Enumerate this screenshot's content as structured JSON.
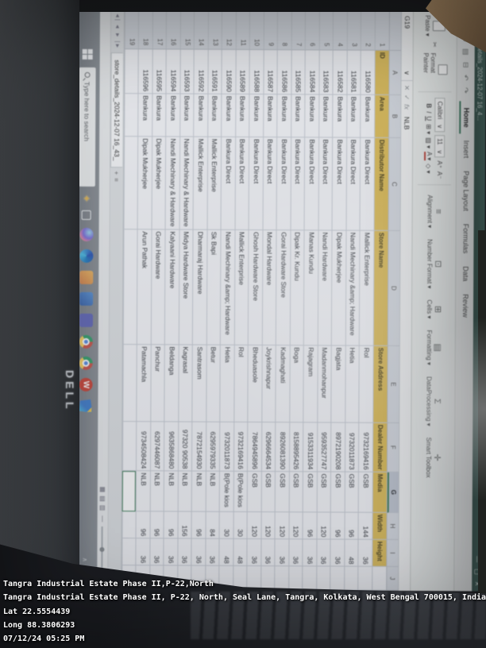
{
  "overlay": {
    "lines": [
      "Tangra Industrial Estate Phase II,P-22,North",
      "Tangra Industrial Estate Phase II, P-22, North, Seal Lane, Tangra, Kolkata, West Bengal 700015, India",
      "Lat 22.5554439",
      "Long 88.3806293",
      "07/12/24 05:25 PM"
    ]
  },
  "laptop": {
    "brand": "DELL"
  },
  "titlebar": {
    "doc_icon": "S",
    "doc_title": "store_details_2024-12-07 16_4...",
    "minimize": "—",
    "maximize": "▢",
    "close": "✕"
  },
  "menubar": {
    "menu_label": "Menu ∨",
    "quick_icons": "▤ ⊟ ↶ ↷",
    "tabs": [
      "Home",
      "Insert",
      "Page Layout",
      "Formulas",
      "Data",
      "Review"
    ],
    "active_tab": "Home"
  },
  "ribbon": {
    "paste_label": "Paste ▾",
    "cut_icon": "✂",
    "format_painter_label": "Format Painter",
    "font_name": "Calibri",
    "font_size": "11",
    "dropdown": "∨",
    "bold": "B",
    "italic": "I",
    "underline": "U",
    "grow_font": "A⁺",
    "shrink_font": "A⁻",
    "borders_icon": "⊞ ▾",
    "fill_icon": "▨ ▾",
    "font_color_icon": "A ▾",
    "shading_icon": "◇ ▾",
    "big_buttons": [
      {
        "icon": "≡",
        "label": "Alignment ▾"
      },
      {
        "icon": "⊡",
        "label": "Number Format ▾"
      },
      {
        "icon": "⊞",
        "label": "Cells ▾"
      },
      {
        "icon": "▤",
        "label": "Formatting ▾"
      },
      {
        "icon": "Σ",
        "label": "DataProcessing ▾"
      },
      {
        "icon": "✛",
        "label": "Smart Toolbox"
      }
    ]
  },
  "formula_bar": {
    "name_box": "G19",
    "name_dropdown": "∨",
    "cancel": "✕",
    "enter": "✓",
    "fx": "fx",
    "value": "NLB"
  },
  "sheet": {
    "col_letters": [
      "A",
      "B",
      "C",
      "D",
      "E",
      "F",
      "G",
      "H",
      "I",
      "J"
    ],
    "selected_col": "G",
    "headers": [
      "ID",
      "Area",
      "Distributor Name",
      "Store Name",
      "Store Address",
      "Dealer Number",
      "Media",
      "Width",
      "Height"
    ],
    "rows": [
      [
        "116580",
        "Bankura",
        "Bankura Direct",
        "Mallick Enterprise",
        "Rol",
        "9732169416",
        "GSB",
        "144",
        "36"
      ],
      [
        "116581",
        "Bankura",
        "Bankura Direct",
        "Nandi Mechinary &amp; Hardware",
        "Hetia",
        "9732011873",
        "GSB",
        "96",
        "48"
      ],
      [
        "116582",
        "Bankura",
        "Bankura Direct",
        "Dipak Mukherjee",
        "Bagjata",
        "8972190208",
        "GSB",
        "96",
        "36"
      ],
      [
        "116583",
        "Bankura",
        "Bankura Direct",
        "Nandi Hardware",
        "Madanmohanpur",
        "9593527747",
        "GSB",
        "120",
        "36"
      ],
      [
        "116584",
        "Bankura",
        "Bankura Direct",
        "Manas Kundu",
        "Rajagram",
        "9153311934",
        "GSB",
        "96",
        "36"
      ],
      [
        "116585",
        "Bankura",
        "Bankura Direct",
        "Dipak Kr. Kundu",
        "Boga",
        "8158895426",
        "GSB",
        "120",
        "36"
      ],
      [
        "116586",
        "Bankura",
        "Bankura Direct",
        "Gorai Hardware Store",
        "Kadmaghati",
        "8926081390",
        "GSB",
        "120",
        "36"
      ],
      [
        "116587",
        "Bankura",
        "Bankura Direct",
        "Mondal Hardware",
        "Joykrishnapur",
        "6296664534",
        "GSB",
        "120",
        "36"
      ],
      [
        "116588",
        "Bankura",
        "Bankura Direct",
        "Ghosh Hardware Store",
        "Bheduasole",
        "7864945896",
        "GSB",
        "120",
        "36"
      ],
      [
        "116589",
        "Bankura",
        "Bankura Direct",
        "Mallick Enterprise",
        "Rol",
        "9732169416",
        "B(Pole kios",
        "30",
        "48"
      ],
      [
        "116590",
        "Bankura",
        "Bankura Direct",
        "Nandi Mechinary &amp; Hardware",
        "Hetia",
        "9732011873",
        "B(Pole kios",
        "30",
        "48"
      ],
      [
        "116591",
        "Bankura",
        "Mallick Enterprise",
        "Sk Bapi",
        "Betur",
        "6295979335",
        "NLB",
        "84",
        "36"
      ],
      [
        "116592",
        "Bankura",
        "Mallick Enterprise",
        "Dharmaraj Hardware",
        "Santrasom",
        "7872154930",
        "NLB",
        "96",
        "36"
      ],
      [
        "116593",
        "Bankura",
        "Nandi Mechinary & Hardware",
        "Midya Hardware Store",
        "Kagrasal",
        "97320 90538",
        "NLB",
        "156",
        "36"
      ],
      [
        "116594",
        "Bankura",
        "Nandi Mechinary & Hardware",
        "Kalyaani Hardware",
        "Beldanga",
        "9635868480",
        "NLB",
        "96",
        "36"
      ],
      [
        "116595",
        "Bankura",
        "Dipak Mukherjee",
        "Gorai Hardware",
        "Panchur",
        "6297446087",
        "NLB",
        "96",
        "36"
      ],
      [
        "116596",
        "Bankura",
        "Dipak Mukherjee",
        "Arun Pathak",
        "Patamachla",
        "9734508424",
        "NLB",
        "96",
        "36"
      ]
    ],
    "partial_row_number": "19"
  },
  "tabbar": {
    "nav_glyphs": "◄| ◄ ► |►",
    "tab_label": "store_details_2024-12-07 16_43_",
    "add_sheet": "+",
    "sheet_list_icon": "≡"
  },
  "statusbar": {
    "view_icons": [
      "▦",
      "▤",
      "▥"
    ],
    "zoom_out": "—",
    "zoom_in": "+"
  },
  "taskbar": {
    "search_placeholder": "Type here to search",
    "sparkle": "✦",
    "app_icons": [
      "copilot-sphere",
      "edge",
      "photos",
      "mail",
      "teams",
      "chrome",
      "chrome-2",
      "wps-w",
      "wps-office"
    ],
    "wps_w_letter": "W",
    "tray_glyphs": [
      "∧",
      "▭",
      "◻"
    ]
  },
  "colors": {
    "header_fill": "#e5bd3f",
    "titlebar_green": "#2b4f45",
    "selection_green": "#2e7d4f",
    "wps_red": "#e03a2a"
  }
}
